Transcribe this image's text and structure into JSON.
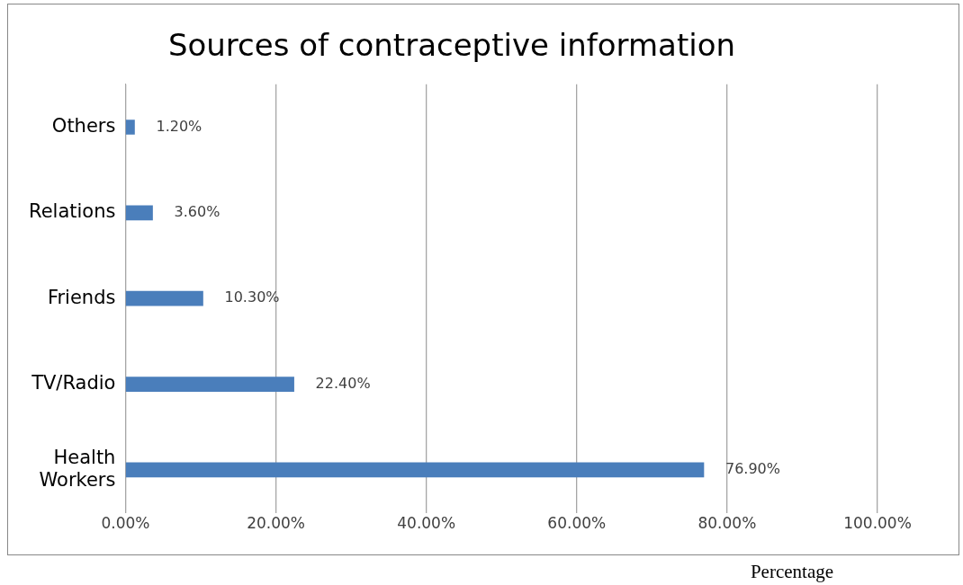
{
  "chart_data": {
    "type": "bar",
    "orientation": "horizontal",
    "title": "Sources of contraceptive information",
    "xlabel": "Percentage",
    "categories": [
      "Others",
      "Relations",
      "Friends",
      "TV/Radio",
      "Health Workers"
    ],
    "values": [
      1.2,
      3.6,
      10.3,
      22.4,
      76.9
    ],
    "value_labels": [
      "1.20%",
      "3.60%",
      "10.30%",
      "22.40%",
      "76.90%"
    ],
    "color": "#4a7ebb",
    "xlim": [
      0,
      100
    ],
    "xticks": [
      {
        "value": 0,
        "label": "0.00%"
      },
      {
        "value": 20,
        "label": "20.00%"
      },
      {
        "value": 40,
        "label": "40.00%"
      },
      {
        "value": 60,
        "label": "60.00%"
      },
      {
        "value": 80,
        "label": "80.00%"
      },
      {
        "value": 100,
        "label": "100.00%"
      }
    ],
    "grid": "x"
  }
}
